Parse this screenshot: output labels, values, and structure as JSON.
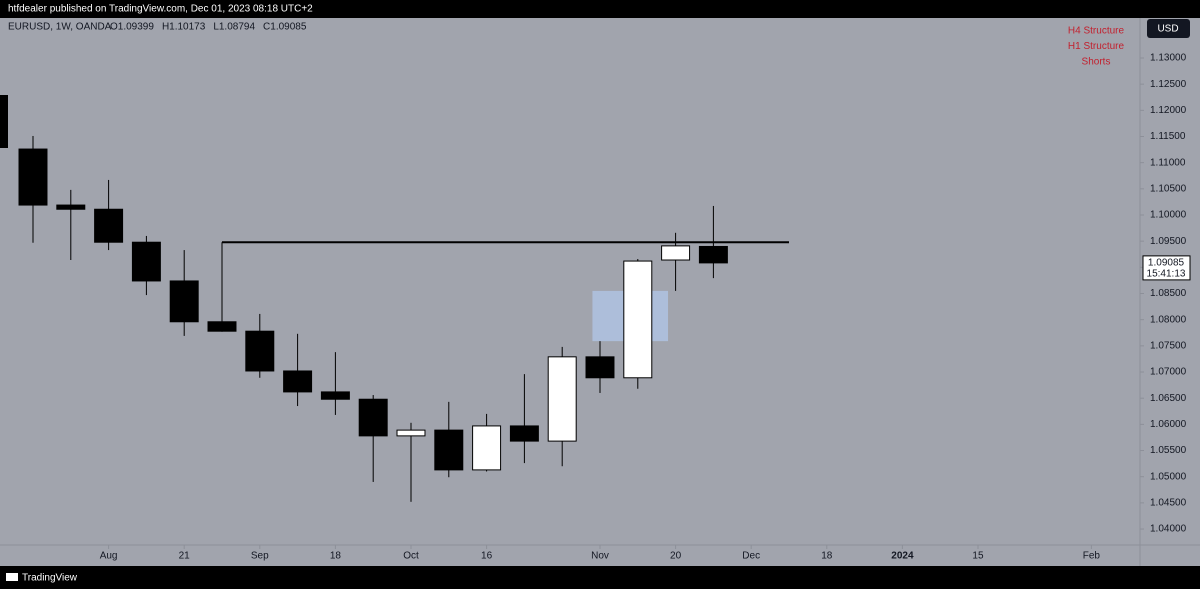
{
  "page": {
    "published": "htfdealer published on TradingView.com, Dec 01, 2023 08:18 UTC+2",
    "brand": "TradingView",
    "currency": "USD"
  },
  "chart_data": {
    "type": "candlestick",
    "title": "EURUSD, 1W, OANDA",
    "header_labels": [
      "O1.09399",
      "H1.10173",
      "L1.08794",
      "C1.09085"
    ],
    "x": [
      0,
      1,
      2,
      3,
      4,
      5,
      6,
      7,
      8,
      9,
      10,
      11,
      12,
      13,
      14,
      15,
      16,
      17,
      18
    ],
    "open": [
      1.1126,
      1.1019,
      1.1011,
      1.0948,
      1.0874,
      1.0796,
      1.0778,
      1.0702,
      1.0662,
      1.0648,
      1.0578,
      1.0589,
      1.0513,
      1.0597,
      1.0568,
      1.0729,
      1.0689,
      1.0914,
      1.09399
    ],
    "high": [
      1.1151,
      1.1048,
      1.1067,
      1.096,
      1.0933,
      1.0948,
      1.0811,
      1.0773,
      1.0738,
      1.0656,
      1.0603,
      1.0643,
      1.062,
      1.0696,
      1.0748,
      1.0759,
      1.0916,
      1.0966,
      1.10173
    ],
    "low": [
      1.0947,
      1.0914,
      1.0933,
      1.0847,
      1.0769,
      1.0777,
      1.0689,
      1.0635,
      1.0618,
      1.049,
      1.0452,
      1.0499,
      1.051,
      1.0526,
      1.052,
      1.066,
      1.0668,
      1.0855,
      1.08794
    ],
    "close": [
      1.1019,
      1.1011,
      1.0948,
      1.0874,
      1.0796,
      1.0778,
      1.0702,
      1.0662,
      1.0648,
      1.0578,
      1.0589,
      1.0513,
      1.0597,
      1.0568,
      1.0729,
      1.0689,
      1.0912,
      1.0941,
      1.09085
    ],
    "up_color": "#ffffff",
    "down_color": "#000000",
    "xlim": [
      -0.873,
      29.286
    ],
    "xticks": [
      {
        "value": 2,
        "label": "Aug"
      },
      {
        "value": 4,
        "label": "21"
      },
      {
        "value": 6,
        "label": "Sep"
      },
      {
        "value": 8,
        "label": "18"
      },
      {
        "value": 10,
        "label": "Oct"
      },
      {
        "value": 12,
        "label": "16"
      },
      {
        "value": 15,
        "label": "Nov"
      },
      {
        "value": 17,
        "label": "20"
      },
      {
        "value": 19,
        "label": "Dec"
      },
      {
        "value": 21,
        "label": "18"
      },
      {
        "value": 23,
        "label": "2024",
        "bold": true
      },
      {
        "value": 25,
        "label": "15"
      },
      {
        "value": 28,
        "label": "Feb"
      }
    ],
    "ylim": [
      1.03695,
      1.13764
    ],
    "yticks": [
      {
        "value": 1.04,
        "label": "1.04000"
      },
      {
        "value": 1.045,
        "label": "1.04500"
      },
      {
        "value": 1.05,
        "label": "1.05000"
      },
      {
        "value": 1.055,
        "label": "1.05500"
      },
      {
        "value": 1.06,
        "label": "1.06000"
      },
      {
        "value": 1.065,
        "label": "1.06500"
      },
      {
        "value": 1.07,
        "label": "1.07000"
      },
      {
        "value": 1.075,
        "label": "1.07500"
      },
      {
        "value": 1.08,
        "label": "1.08000"
      },
      {
        "value": 1.085,
        "label": "1.08500"
      },
      {
        "value": 1.09,
        "label": "1.09000"
      },
      {
        "value": 1.095,
        "label": "1.09500"
      },
      {
        "value": 1.1,
        "label": "1.10000"
      },
      {
        "value": 1.105,
        "label": "1.10500"
      },
      {
        "value": 1.11,
        "label": "1.11000"
      },
      {
        "value": 1.115,
        "label": "1.11500"
      },
      {
        "value": 1.12,
        "label": "1.12000"
      },
      {
        "value": 1.125,
        "label": "1.12500"
      },
      {
        "value": 1.13,
        "label": "1.13000"
      }
    ],
    "levels": [
      {
        "value": 1.0948,
        "x": [
          5,
          20
        ],
        "color": "#000000"
      }
    ],
    "zones": [
      {
        "x": [
          14.8,
          16.8
        ],
        "y": [
          1.0759,
          1.0855
        ],
        "color": "#b8d4ff"
      }
    ],
    "annotations": [
      "H4 Structure",
      "H1 Structure",
      "Shorts"
    ],
    "annotation_color": "#c2202e",
    "last_price": {
      "value": 1.09085,
      "label": "1.09085",
      "countdown": "15:41:13"
    }
  }
}
